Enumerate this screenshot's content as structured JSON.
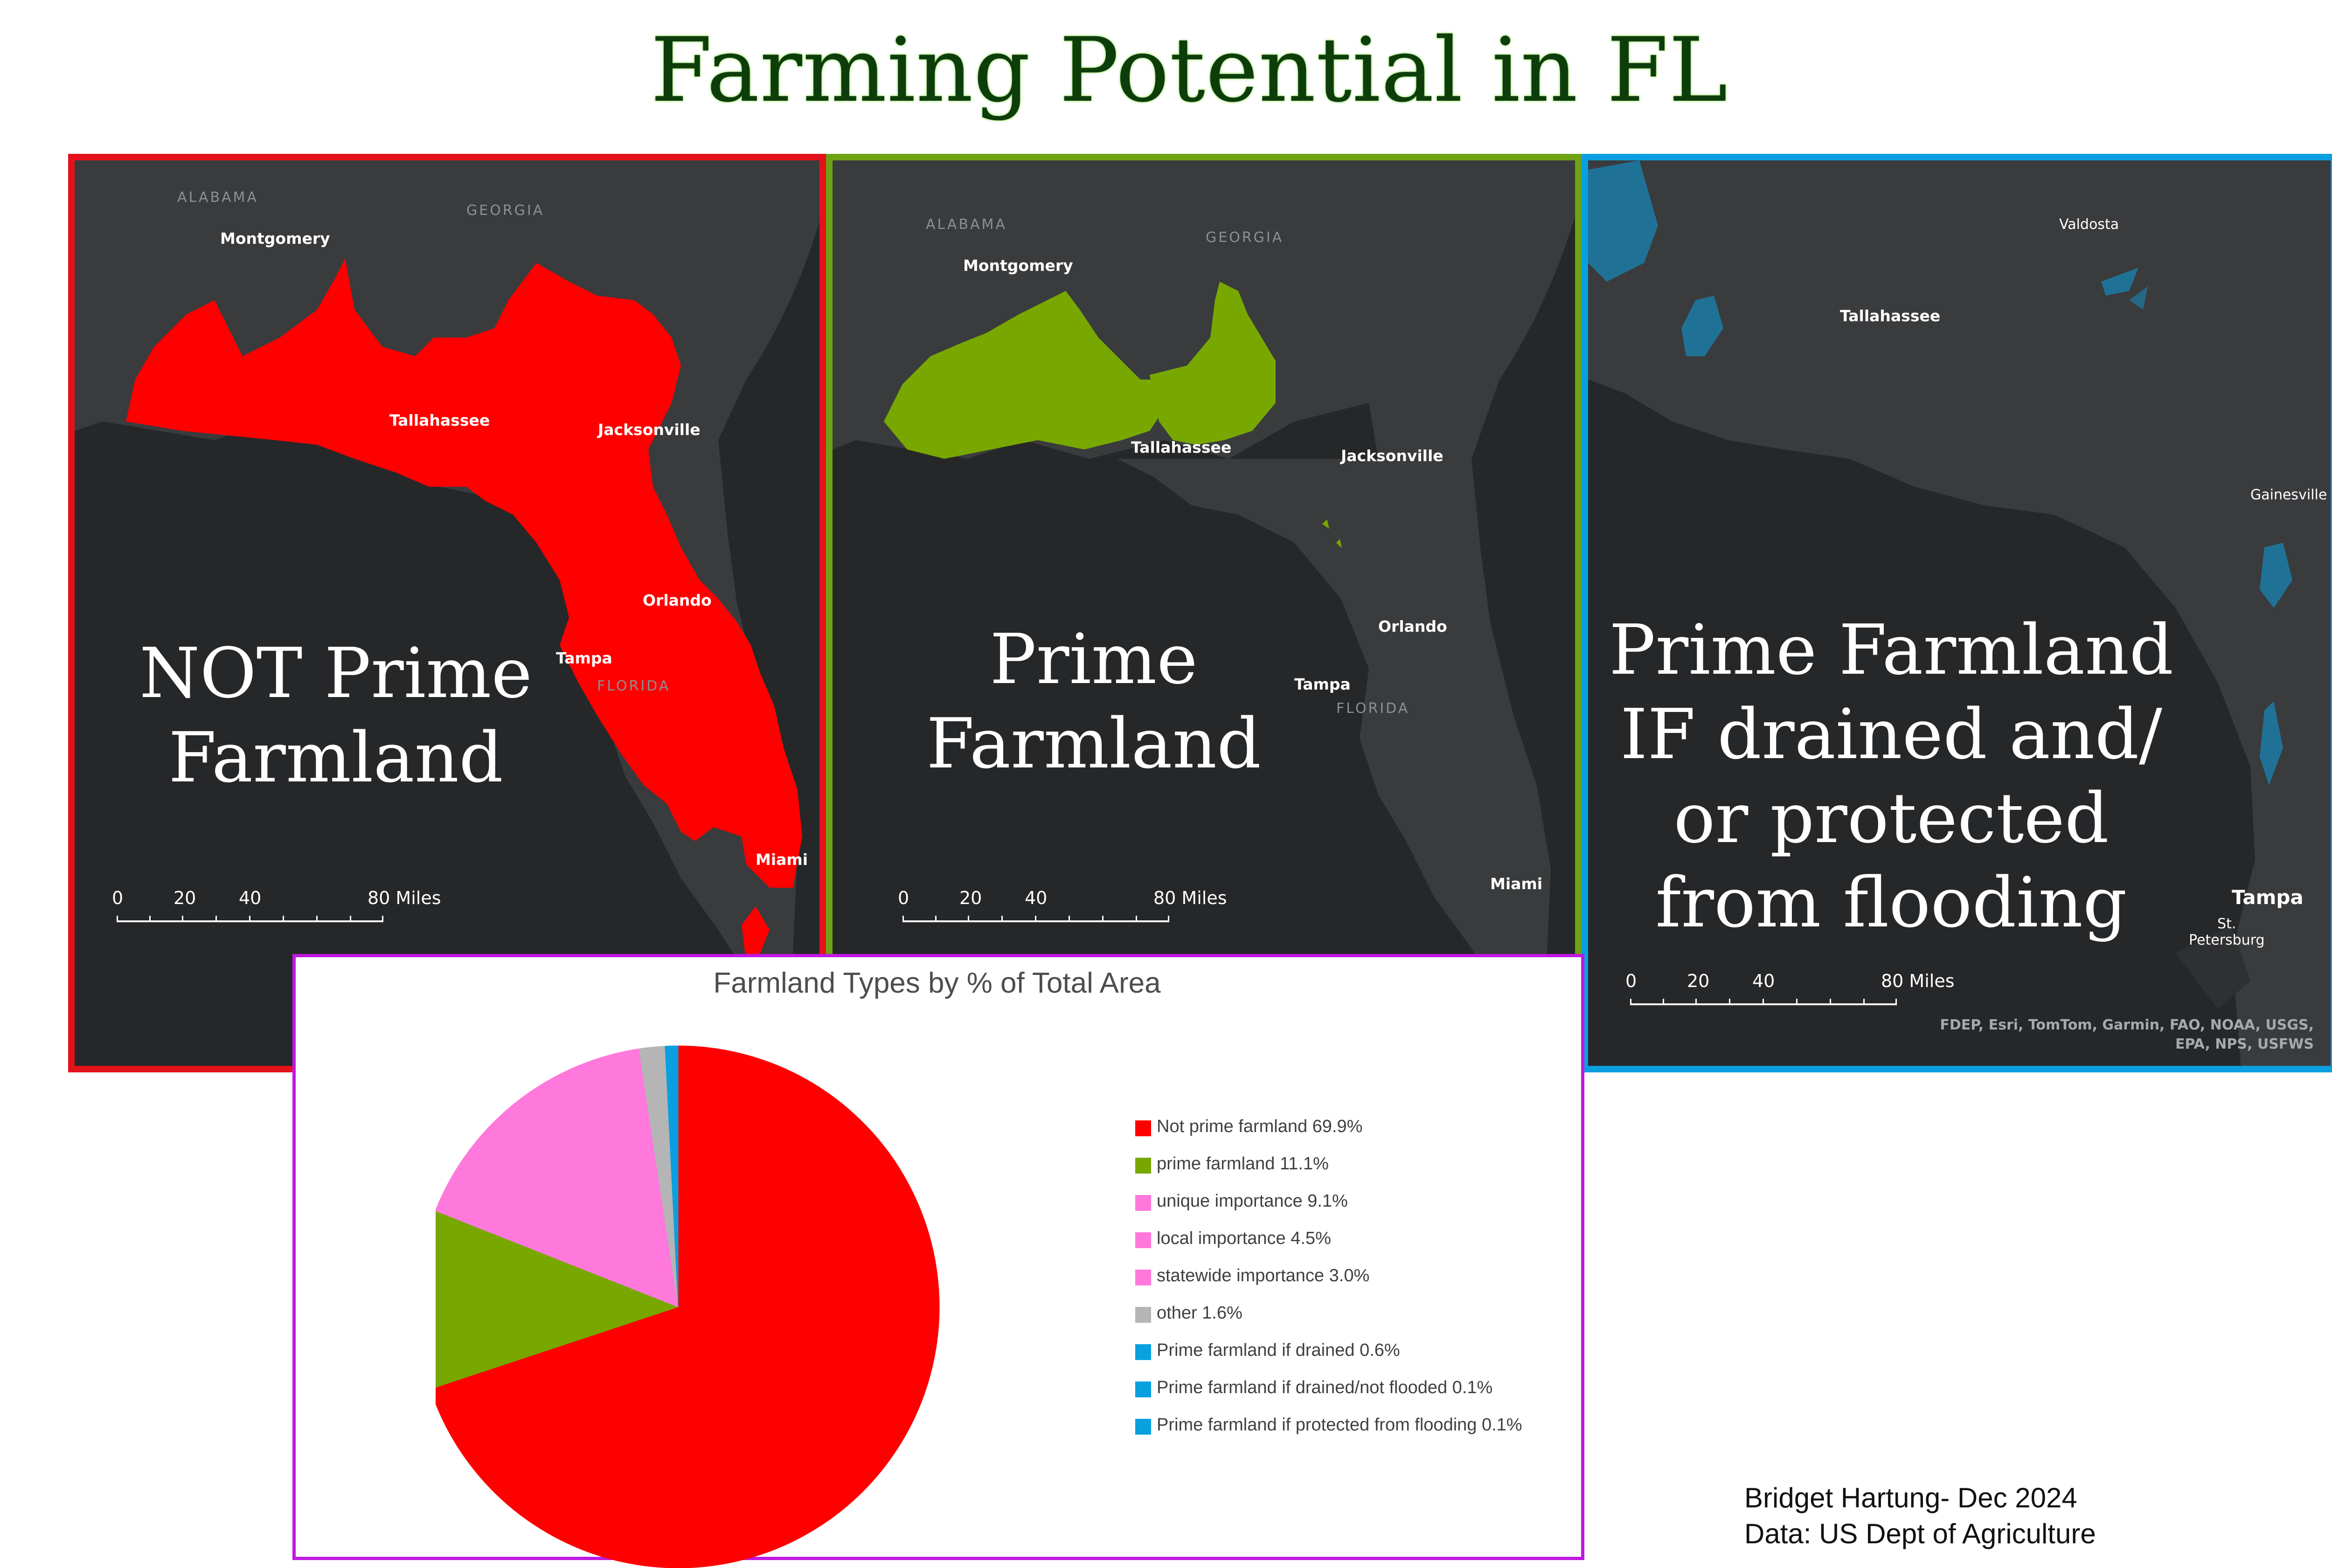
{
  "title": "Farming Potential in FL",
  "colors": {
    "not_prime": "#ff0000",
    "prime": "#78a800",
    "pink": "#ff78dc",
    "other": "#b5b5b5",
    "drained": "#0aa0e0",
    "map_bg": "#262729",
    "land": "#3a3b3d"
  },
  "panels": [
    {
      "label_lines": [
        "NOT Prime",
        "Farmland"
      ],
      "cities": [
        "Montgomery",
        "Tallahassee",
        "Jacksonville",
        "Orlando",
        "Tampa",
        "Miami"
      ],
      "states": [
        "ALABAMA",
        "GEORGIA",
        "FLORIDA"
      ],
      "scale": [
        "0",
        "20",
        "40",
        "80 Miles"
      ]
    },
    {
      "label_lines": [
        "Prime",
        "Farmland"
      ],
      "cities": [
        "Montgomery",
        "Tallahassee",
        "Jacksonville",
        "Orlando",
        "Tampa",
        "Miami"
      ],
      "states": [
        "ALABAMA",
        "GEORGIA",
        "FLORIDA"
      ],
      "scale": [
        "0",
        "20",
        "40",
        "80 Miles"
      ]
    },
    {
      "label_lines": [
        "Prime Farmland",
        "IF drained and/",
        "or protected",
        "from flooding"
      ],
      "cities": [
        "Valdosta",
        "Tallahassee",
        "Gainesville",
        "Tampa",
        "St.",
        "Petersburg"
      ],
      "scale": [
        "0",
        "20",
        "40",
        "80 Miles"
      ],
      "attribution": [
        "FDEP, Esri, TomTom, Garmin, FAO, NOAA, USGS,",
        "EPA, NPS, USFWS"
      ]
    }
  ],
  "chart_data": {
    "type": "pie",
    "title": "Farmland Types by % of Total Area",
    "slices": [
      {
        "label": "Not prime farmland 69.9%",
        "value": 69.9,
        "color": "#ff0000"
      },
      {
        "label": "prime farmland 11.1%",
        "value": 11.1,
        "color": "#78a800"
      },
      {
        "label": "unique importance 9.1%",
        "value": 9.1,
        "color": "#ff78dc"
      },
      {
        "label": "local importance 4.5%",
        "value": 4.5,
        "color": "#ff78dc"
      },
      {
        "label": "statewide importance 3.0%",
        "value": 3.0,
        "color": "#ff78dc"
      },
      {
        "label": "other 1.6%",
        "value": 1.6,
        "color": "#b5b5b5"
      },
      {
        "label": "Prime farmland if drained 0.6%",
        "value": 0.6,
        "color": "#0aa0e0"
      },
      {
        "label": "Prime farmland if drained/not flooded 0.1%",
        "value": 0.1,
        "color": "#0aa0e0"
      },
      {
        "label": "Prime farmland if protected from flooding 0.1%",
        "value": 0.1,
        "color": "#0aa0e0"
      }
    ],
    "legend_position": "right"
  },
  "credit": {
    "line1": "Bridget Hartung- Dec 2024",
    "line2": "Data: US Dept of Agriculture"
  }
}
